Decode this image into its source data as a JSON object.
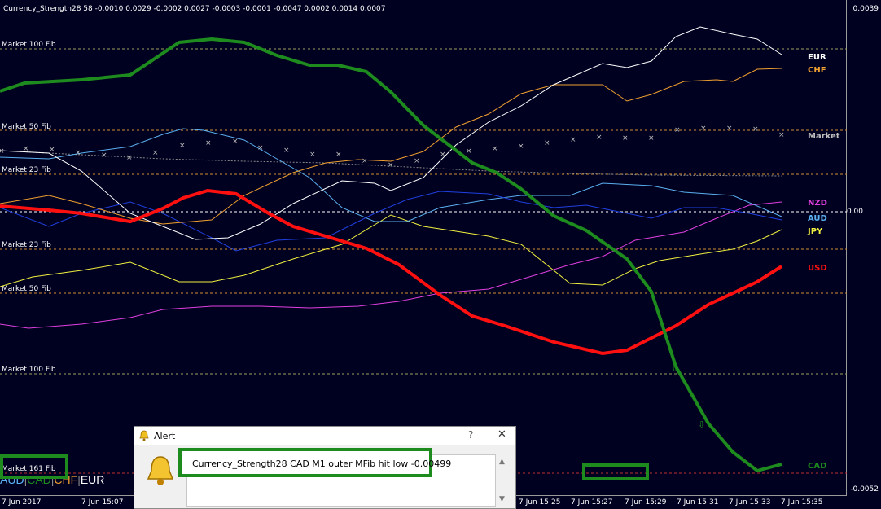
{
  "indicator_title": "Currency_Strength28 58 -0.0010 0.0029 -0.0002 0.0027 -0.0003 -0.0001 -0.0047 0.0002 0.0014 0.0007",
  "y_axis": {
    "top": "0.0039",
    "zero": "0.00",
    "bottom": "-0.0052"
  },
  "levels": {
    "market_100_fib_upper": "Market 100 Fib",
    "market_50_fib_upper": "Market 50 Fib",
    "market_23_fib_upper": "Market 23 Fib",
    "market_23_fib_lower": "Market 23 Fib",
    "market_50_fib_lower": "Market 50 Fib",
    "market_100_fib_lower": "Market 100 Fib",
    "market_161_fib_lower": "Market 161 Fib"
  },
  "currency_labels": {
    "eur": "EUR",
    "chf": "CHF",
    "market": "Market",
    "nzd": "NZD",
    "aud": "AUD",
    "jpy": "JPY",
    "usd": "USD",
    "cad": "CAD"
  },
  "x_axis": {
    "t0": "7 Jun 2017",
    "t1": "7 Jun 15:07",
    "t2": "7 Jun 15:25",
    "t3": "7 Jun 15:27",
    "t4": "7 Jun 15:29",
    "t5": "7 Jun 15:31",
    "t6": "7 Jun 15:33",
    "t7": "7 Jun 15:35"
  },
  "bottom_strip": {
    "aud": "AUD",
    "cad": "CAD",
    "chf": "CHF",
    "eur": "EUR"
  },
  "alert": {
    "title": "Alert",
    "help": "?",
    "close": "✕",
    "message": "Currency_Strength28 CAD M1 outer MFib hit low -0.00499"
  },
  "icons": {
    "alert_title": "bell-icon",
    "alert_body": "bell-icon"
  },
  "colors": {
    "background": "#000020",
    "eur": "#ffffff",
    "chf": "#f0a030",
    "market": "#bfbfbf",
    "nzd": "#e040e0",
    "aud": "#5ab0f0",
    "jpy": "#f0f040",
    "usd": "#ff1010",
    "cad": "#1e8b1e",
    "highlight": "#1e8b1e"
  }
}
